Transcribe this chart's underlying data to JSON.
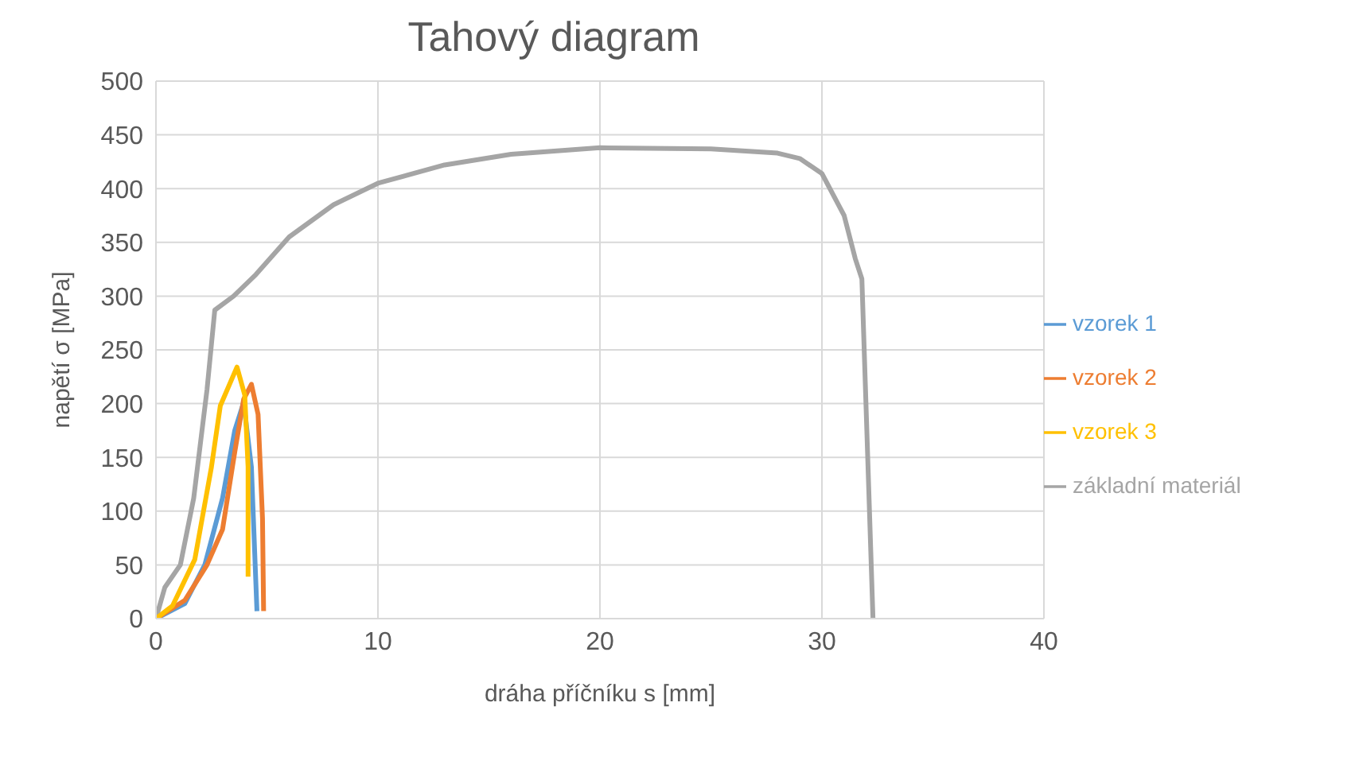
{
  "chart_data": {
    "type": "line",
    "title": "Tahový diagram",
    "xlabel": "dráha příčníku s [mm]",
    "ylabel": "napětí σ [MPa]",
    "xlim": [
      0,
      40
    ],
    "xticks": [
      0,
      10,
      20,
      30,
      40
    ],
    "ylim": [
      0,
      500
    ],
    "yticks": [
      0,
      50,
      100,
      150,
      200,
      250,
      300,
      350,
      400,
      450,
      500
    ],
    "grid": true,
    "legend": "right",
    "marker": "none",
    "line_style": "solid",
    "series": [
      {
        "name": "základní materiál",
        "color": "#a5a5a5",
        "x": [
          0,
          0.4,
          1.1,
          1.7,
          2.3,
          2.65,
          3.5,
          4.5,
          6,
          8,
          10,
          13,
          16,
          20,
          25,
          28,
          29,
          30,
          31,
          31.5,
          31.8,
          32.3
        ],
        "values": [
          0,
          29,
          50,
          112,
          213,
          287,
          300,
          320,
          355,
          385,
          405,
          422,
          432,
          438,
          437,
          433,
          428,
          414,
          375,
          335,
          316,
          0
        ]
      },
      {
        "name": "vzorek 1",
        "color": "#5b9bd5",
        "x": [
          0,
          1.3,
          2.2,
          3,
          3.55,
          3.95,
          4.3,
          4.55
        ],
        "values": [
          0,
          14,
          50,
          112,
          175,
          201,
          141,
          7
        ]
      },
      {
        "name": "vzorek 2",
        "color": "#ed7d31",
        "x": [
          0,
          1.3,
          2.3,
          3,
          3.55,
          3.95,
          4.3,
          4.6,
          4.8,
          4.85
        ],
        "values": [
          0,
          17,
          50,
          83,
          155,
          204,
          218,
          190,
          93,
          7
        ]
      },
      {
        "name": "vzorek 3",
        "color": "#ffc000",
        "x": [
          0,
          0.75,
          1.75,
          2.5,
          2.9,
          3.65,
          4,
          4.15,
          4.15
        ],
        "values": [
          0,
          12,
          55,
          141,
          198,
          234,
          208,
          141,
          39
        ]
      }
    ]
  }
}
